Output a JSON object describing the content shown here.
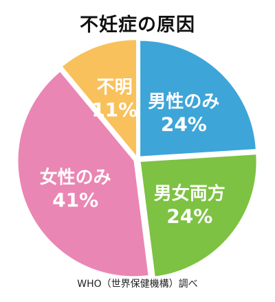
{
  "chart_data": {
    "type": "pie",
    "title": "不妊症の原因",
    "slices": [
      {
        "label": "男性のみ",
        "value": 24,
        "value_text": "24%",
        "color": "#3ea5d8"
      },
      {
        "label": "男女両方",
        "value": 24,
        "value_text": "24%",
        "color": "#7dc242"
      },
      {
        "label": "女性のみ",
        "value": 41,
        "value_text": "41%",
        "color": "#ea86b4"
      },
      {
        "label": "不明",
        "value": 11,
        "value_text": "11%",
        "color": "#f9c15c"
      }
    ],
    "source": "WHO（世界保健機構）調べ"
  }
}
